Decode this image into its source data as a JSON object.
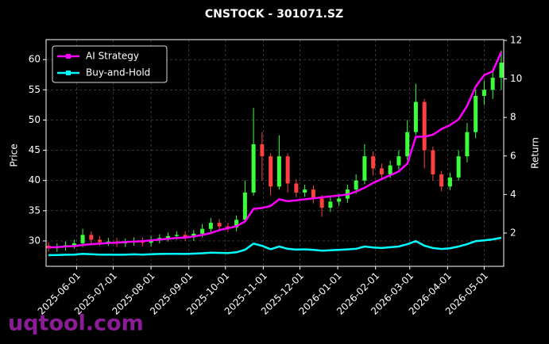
{
  "chart_data": {
    "type": "candlestick",
    "title": "CNSTOCK - 301071.SZ",
    "ylabel": "Price",
    "y2label": "Return",
    "watermark": "uqtool.com",
    "x": [
      "2025-05-09",
      "2025-05-16",
      "2025-05-23",
      "2025-05-30",
      "2025-06-06",
      "2025-06-13",
      "2025-06-20",
      "2025-06-27",
      "2025-07-04",
      "2025-07-11",
      "2025-07-18",
      "2025-07-25",
      "2025-08-01",
      "2025-08-08",
      "2025-08-15",
      "2025-08-22",
      "2025-08-29",
      "2025-09-05",
      "2025-09-12",
      "2025-09-19",
      "2025-09-26",
      "2025-10-03",
      "2025-10-10",
      "2025-10-17",
      "2025-10-24",
      "2025-10-31",
      "2025-11-07",
      "2025-11-14",
      "2025-11-21",
      "2025-11-28",
      "2025-12-05",
      "2025-12-12",
      "2025-12-19",
      "2025-12-26",
      "2026-01-02",
      "2026-01-09",
      "2026-01-16",
      "2026-01-23",
      "2026-01-30",
      "2026-02-06",
      "2026-02-13",
      "2026-02-20",
      "2026-02-27",
      "2026-03-06",
      "2026-03-13",
      "2026-03-20",
      "2026-03-27",
      "2026-04-03",
      "2026-04-10",
      "2026-04-17",
      "2026-04-24",
      "2026-05-01",
      "2026-05-08",
      "2026-05-15"
    ],
    "open": [
      29.2,
      28.8,
      29.0,
      29.3,
      29.6,
      31.0,
      30.2,
      29.8,
      29.9,
      29.6,
      29.8,
      30.0,
      29.7,
      30.2,
      30.5,
      30.8,
      31.0,
      30.6,
      31.2,
      32.0,
      33.0,
      32.4,
      32.2,
      33.5,
      38.0,
      46.0,
      44.0,
      39.0,
      44.0,
      39.5,
      38.0,
      38.5,
      37.0,
      35.5,
      36.5,
      37.0,
      38.5,
      40.0,
      44.0,
      42.0,
      41.0,
      42.5,
      44.0,
      48.0,
      53.0,
      45.0,
      41.0,
      39.0,
      40.5,
      44.0,
      48.0,
      54.0,
      55.0,
      57.0
    ],
    "high": [
      29.8,
      29.6,
      29.9,
      30.2,
      32.0,
      31.6,
      30.8,
      30.5,
      30.5,
      30.4,
      30.6,
      30.6,
      30.8,
      31.1,
      31.4,
      31.6,
      31.6,
      31.8,
      32.8,
      33.8,
      33.6,
      33.0,
      34.2,
      40.0,
      52.0,
      48.0,
      44.5,
      47.5,
      44.5,
      40.2,
      39.3,
      39.2,
      37.6,
      37.3,
      37.8,
      39.3,
      41.0,
      46.0,
      44.8,
      42.8,
      43.3,
      45.0,
      50.0,
      56.0,
      53.5,
      45.6,
      41.6,
      41.3,
      45.0,
      49.5,
      55.0,
      56.5,
      58.5,
      61.5
    ],
    "low": [
      28.2,
      28.2,
      28.4,
      28.7,
      29.0,
      29.6,
      29.2,
      29.2,
      29.0,
      29.0,
      29.2,
      29.1,
      29.1,
      29.6,
      29.9,
      30.2,
      30.0,
      30.0,
      30.6,
      31.3,
      31.8,
      31.5,
      31.6,
      33.0,
      37.5,
      40.0,
      37.5,
      38.5,
      38.0,
      37.2,
      37.3,
      36.2,
      34.0,
      34.8,
      35.8,
      36.3,
      37.8,
      39.4,
      40.8,
      40.2,
      40.4,
      41.8,
      43.4,
      47.5,
      42.0,
      40.0,
      38.2,
      38.4,
      40.0,
      43.0,
      47.0,
      52.5,
      53.5,
      55.0
    ],
    "close": [
      28.8,
      29.0,
      29.3,
      29.6,
      31.0,
      30.2,
      29.8,
      29.9,
      29.6,
      29.8,
      30.0,
      29.7,
      30.2,
      30.5,
      30.8,
      31.0,
      30.6,
      31.2,
      32.0,
      33.0,
      32.4,
      32.2,
      33.5,
      38.0,
      46.0,
      44.0,
      39.0,
      44.0,
      39.5,
      38.0,
      38.5,
      37.0,
      35.5,
      36.5,
      37.0,
      38.5,
      40.0,
      44.0,
      42.0,
      41.0,
      42.5,
      44.0,
      48.0,
      53.0,
      45.0,
      41.0,
      39.0,
      40.5,
      44.0,
      48.0,
      54.0,
      55.0,
      57.0,
      59.5
    ],
    "up_color": "#3cff3c",
    "down_color": "#ff4040",
    "series": [
      {
        "name": "AI Strategy",
        "color": "#ff00ff",
        "axis": "y2",
        "values": [
          1.25,
          1.27,
          1.3,
          1.32,
          1.38,
          1.42,
          1.45,
          1.48,
          1.5,
          1.53,
          1.56,
          1.58,
          1.62,
          1.66,
          1.7,
          1.74,
          1.76,
          1.82,
          1.9,
          2.0,
          2.15,
          2.25,
          2.35,
          2.6,
          3.25,
          3.3,
          3.4,
          3.75,
          3.65,
          3.7,
          3.75,
          3.8,
          3.85,
          3.9,
          3.95,
          4.0,
          4.15,
          4.35,
          4.6,
          4.8,
          5.0,
          5.2,
          5.6,
          7.0,
          7.0,
          7.1,
          7.4,
          7.6,
          7.9,
          8.6,
          9.6,
          10.2,
          10.4,
          11.4
        ]
      },
      {
        "name": "Buy-and-Hold",
        "color": "#00ffff",
        "axis": "y2",
        "values": [
          0.85,
          0.86,
          0.87,
          0.88,
          0.92,
          0.9,
          0.88,
          0.88,
          0.87,
          0.88,
          0.89,
          0.88,
          0.9,
          0.91,
          0.92,
          0.92,
          0.91,
          0.93,
          0.95,
          0.98,
          0.97,
          0.96,
          1.0,
          1.13,
          1.45,
          1.33,
          1.16,
          1.3,
          1.18,
          1.14,
          1.15,
          1.12,
          1.08,
          1.1,
          1.12,
          1.15,
          1.18,
          1.3,
          1.25,
          1.22,
          1.26,
          1.3,
          1.42,
          1.58,
          1.34,
          1.22,
          1.17,
          1.21,
          1.3,
          1.42,
          1.58,
          1.62,
          1.67,
          1.75
        ]
      }
    ],
    "xlim": [
      "2025-05-07",
      "2026-05-17"
    ],
    "xticks": [
      "2025-06-01",
      "2025-07-01",
      "2025-08-01",
      "2025-09-01",
      "2025-10-01",
      "2025-11-01",
      "2025-12-01",
      "2026-01-01",
      "2026-02-01",
      "2026-03-01",
      "2026-04-01",
      "2026-05-01"
    ],
    "ylim": [
      25.8,
      63.3
    ],
    "yticks": [
      30,
      35,
      40,
      45,
      50,
      55,
      60
    ],
    "y2lim": [
      0.27,
      12.04
    ],
    "y2ticks": [
      2,
      4,
      6,
      8,
      10,
      12
    ],
    "grid": true,
    "legend": "upper left"
  }
}
